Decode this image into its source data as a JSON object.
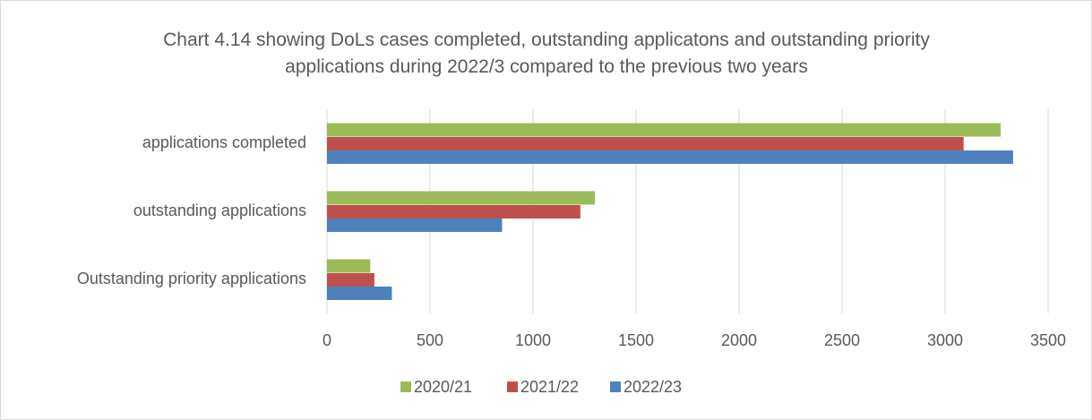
{
  "chart_data": {
    "type": "hbar",
    "title": "Chart 4.14 showing DoLs cases completed, outstanding applicatons and outstanding priority applications during 2022/3 compared to the previous two years",
    "categories": [
      "applications completed",
      "outstanding applications",
      "Outstanding priority applications"
    ],
    "series": [
      {
        "name": "2020/21",
        "color": "#9bbb59",
        "values": [
          3270,
          1300,
          210
        ]
      },
      {
        "name": "2021/22",
        "color": "#c0504d",
        "values": [
          3090,
          1230,
          230
        ]
      },
      {
        "name": "2022/23",
        "color": "#4f81bd",
        "values": [
          3330,
          850,
          315
        ]
      }
    ],
    "xlim": [
      0,
      3500
    ],
    "xticks": [
      0,
      500,
      1000,
      1500,
      2000,
      2500,
      3000,
      3500
    ],
    "grid": true,
    "legend": "bottom"
  }
}
